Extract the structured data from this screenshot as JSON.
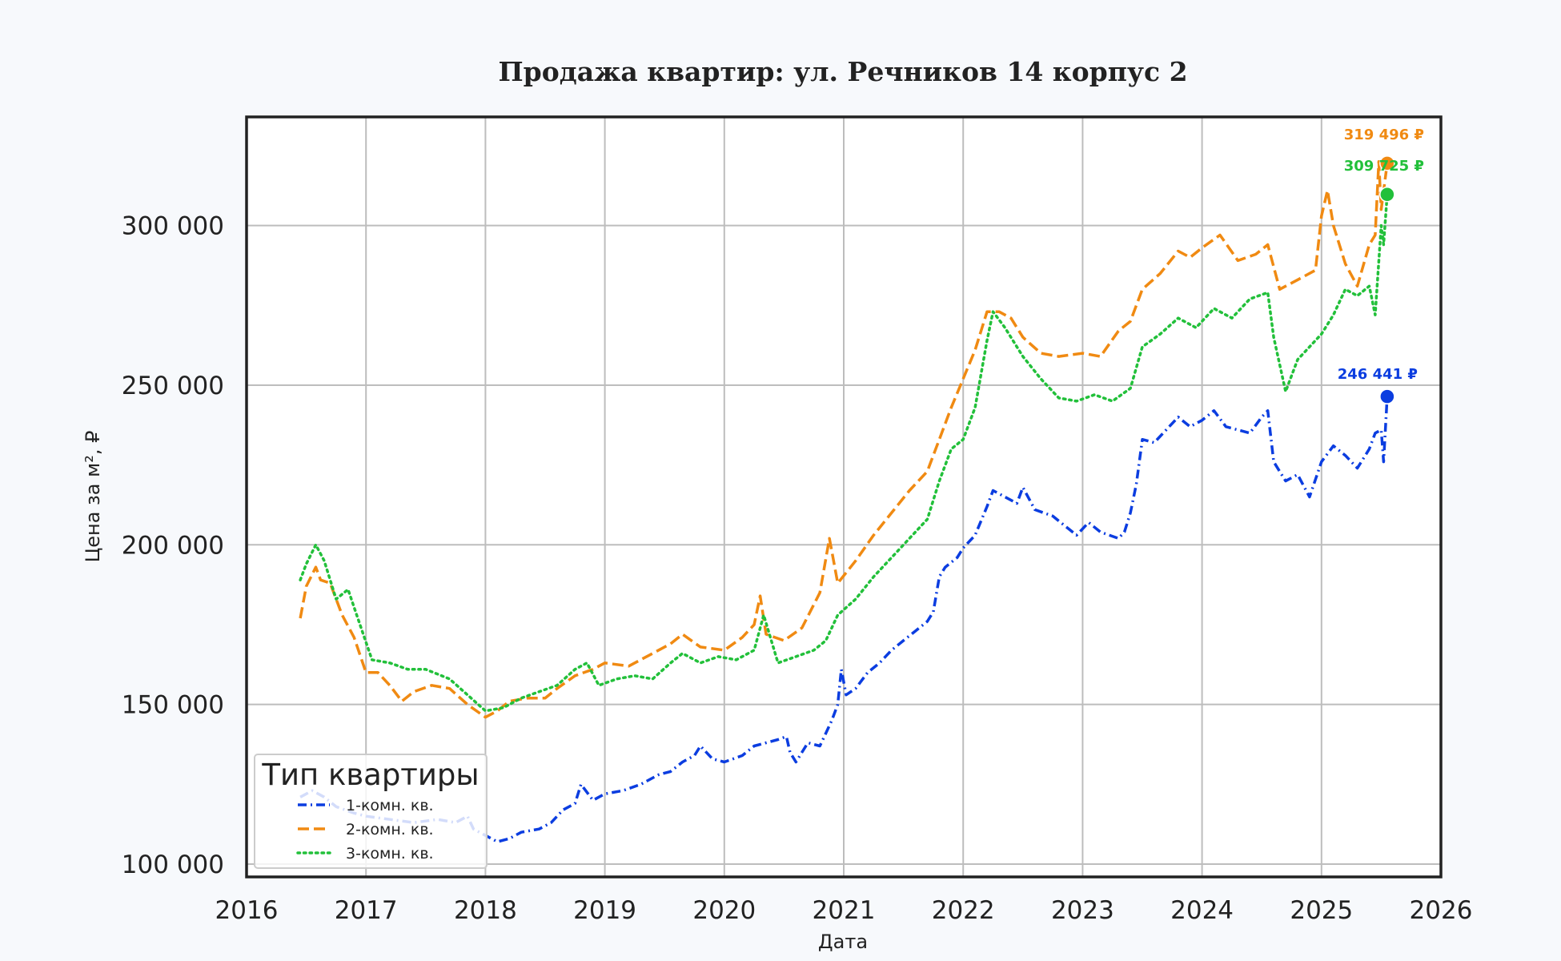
{
  "chart_data": {
    "type": "line",
    "title": "Продажа квартир: ул. Речников 14 корпус 2",
    "xlabel": "Дата",
    "ylabel": "Цена за м², ₽",
    "xlim": [
      2016,
      2026
    ],
    "ylim": [
      96000,
      334000
    ],
    "x_ticks": [
      2016,
      2017,
      2018,
      2019,
      2020,
      2021,
      2022,
      2023,
      2024,
      2025,
      2026
    ],
    "y_ticks": [
      100000,
      150000,
      200000,
      250000,
      300000
    ],
    "y_tick_labels": [
      "100 000",
      "150 000",
      "200 000",
      "250 000",
      "300 000"
    ],
    "grid": true,
    "legend": {
      "title": "Тип квартиры",
      "placement": "lower-left"
    },
    "series": [
      {
        "name": "1-комн. кв.",
        "color": "#0b3de0",
        "style": "dashdot",
        "end_label": "246 441 ₽",
        "points": [
          [
            2016.45,
            121000
          ],
          [
            2016.55,
            123000
          ],
          [
            2016.65,
            121000
          ],
          [
            2016.75,
            118000
          ],
          [
            2016.9,
            116000
          ],
          [
            2017.0,
            115000
          ],
          [
            2017.2,
            114000
          ],
          [
            2017.4,
            113000
          ],
          [
            2017.6,
            114000
          ],
          [
            2017.75,
            113000
          ],
          [
            2017.85,
            115000
          ],
          [
            2017.9,
            111000
          ],
          [
            2018.0,
            109000
          ],
          [
            2018.1,
            107000
          ],
          [
            2018.2,
            108000
          ],
          [
            2018.3,
            110000
          ],
          [
            2018.45,
            111000
          ],
          [
            2018.55,
            113000
          ],
          [
            2018.65,
            117000
          ],
          [
            2018.75,
            119000
          ],
          [
            2018.8,
            125000
          ],
          [
            2018.9,
            120000
          ],
          [
            2019.0,
            122000
          ],
          [
            2019.15,
            123000
          ],
          [
            2019.3,
            125000
          ],
          [
            2019.45,
            128000
          ],
          [
            2019.55,
            129000
          ],
          [
            2019.65,
            132000
          ],
          [
            2019.75,
            134000
          ],
          [
            2019.8,
            137000
          ],
          [
            2019.9,
            133000
          ],
          [
            2020.0,
            132000
          ],
          [
            2020.15,
            134000
          ],
          [
            2020.25,
            137000
          ],
          [
            2020.35,
            138000
          ],
          [
            2020.45,
            139000
          ],
          [
            2020.52,
            140000
          ],
          [
            2020.55,
            135000
          ],
          [
            2020.6,
            132000
          ],
          [
            2020.7,
            138000
          ],
          [
            2020.8,
            137000
          ],
          [
            2020.9,
            145000
          ],
          [
            2020.95,
            150000
          ],
          [
            2020.98,
            161000
          ],
          [
            2021.02,
            153000
          ],
          [
            2021.1,
            155000
          ],
          [
            2021.2,
            160000
          ],
          [
            2021.3,
            163000
          ],
          [
            2021.4,
            167000
          ],
          [
            2021.5,
            170000
          ],
          [
            2021.6,
            173000
          ],
          [
            2021.7,
            176000
          ],
          [
            2021.75,
            179000
          ],
          [
            2021.8,
            190000
          ],
          [
            2021.85,
            193000
          ],
          [
            2021.95,
            196000
          ],
          [
            2022.0,
            199000
          ],
          [
            2022.1,
            203000
          ],
          [
            2022.2,
            212000
          ],
          [
            2022.25,
            217000
          ],
          [
            2022.35,
            215000
          ],
          [
            2022.45,
            213000
          ],
          [
            2022.5,
            218000
          ],
          [
            2022.6,
            211000
          ],
          [
            2022.75,
            209000
          ],
          [
            2022.85,
            206000
          ],
          [
            2022.95,
            203000
          ],
          [
            2023.05,
            207000
          ],
          [
            2023.15,
            204000
          ],
          [
            2023.3,
            202000
          ],
          [
            2023.35,
            204000
          ],
          [
            2023.4,
            210000
          ],
          [
            2023.45,
            219000
          ],
          [
            2023.5,
            233000
          ],
          [
            2023.6,
            232000
          ],
          [
            2023.7,
            236000
          ],
          [
            2023.8,
            240000
          ],
          [
            2023.9,
            237000
          ],
          [
            2024.0,
            239000
          ],
          [
            2024.1,
            242000
          ],
          [
            2024.2,
            237000
          ],
          [
            2024.3,
            236000
          ],
          [
            2024.4,
            235000
          ],
          [
            2024.5,
            240000
          ],
          [
            2024.55,
            242000
          ],
          [
            2024.6,
            226000
          ],
          [
            2024.7,
            220000
          ],
          [
            2024.8,
            222000
          ],
          [
            2024.9,
            215000
          ],
          [
            2025.0,
            226000
          ],
          [
            2025.1,
            231000
          ],
          [
            2025.2,
            228000
          ],
          [
            2025.3,
            224000
          ],
          [
            2025.4,
            230000
          ],
          [
            2025.45,
            235000
          ],
          [
            2025.5,
            236000
          ],
          [
            2025.52,
            226000
          ],
          [
            2025.55,
            246441
          ]
        ]
      },
      {
        "name": "2-комн. кв.",
        "color": "#f08a12",
        "style": "dashed",
        "end_label": "319 496 ₽",
        "points": [
          [
            2016.45,
            177000
          ],
          [
            2016.5,
            187000
          ],
          [
            2016.58,
            193000
          ],
          [
            2016.62,
            189000
          ],
          [
            2016.7,
            188000
          ],
          [
            2016.8,
            178000
          ],
          [
            2016.9,
            171000
          ],
          [
            2017.0,
            160000
          ],
          [
            2017.1,
            160000
          ],
          [
            2017.2,
            156000
          ],
          [
            2017.3,
            151000
          ],
          [
            2017.4,
            154000
          ],
          [
            2017.55,
            156000
          ],
          [
            2017.7,
            155000
          ],
          [
            2017.85,
            150000
          ],
          [
            2018.0,
            146000
          ],
          [
            2018.1,
            148000
          ],
          [
            2018.2,
            151000
          ],
          [
            2018.35,
            152000
          ],
          [
            2018.5,
            152000
          ],
          [
            2018.6,
            155000
          ],
          [
            2018.75,
            159000
          ],
          [
            2018.9,
            161000
          ],
          [
            2019.0,
            163000
          ],
          [
            2019.2,
            162000
          ],
          [
            2019.4,
            166000
          ],
          [
            2019.55,
            169000
          ],
          [
            2019.65,
            172000
          ],
          [
            2019.8,
            168000
          ],
          [
            2020.0,
            167000
          ],
          [
            2020.15,
            171000
          ],
          [
            2020.25,
            175000
          ],
          [
            2020.3,
            184000
          ],
          [
            2020.35,
            172000
          ],
          [
            2020.5,
            170000
          ],
          [
            2020.65,
            174000
          ],
          [
            2020.8,
            185000
          ],
          [
            2020.88,
            202000
          ],
          [
            2020.95,
            188000
          ],
          [
            2021.1,
            195000
          ],
          [
            2021.25,
            203000
          ],
          [
            2021.4,
            210000
          ],
          [
            2021.55,
            217000
          ],
          [
            2021.7,
            223000
          ],
          [
            2021.8,
            233000
          ],
          [
            2021.9,
            243000
          ],
          [
            2022.0,
            252000
          ],
          [
            2022.1,
            261000
          ],
          [
            2022.2,
            273000
          ],
          [
            2022.3,
            273000
          ],
          [
            2022.4,
            271000
          ],
          [
            2022.5,
            265000
          ],
          [
            2022.65,
            260000
          ],
          [
            2022.8,
            259000
          ],
          [
            2023.0,
            260000
          ],
          [
            2023.15,
            259000
          ],
          [
            2023.3,
            267000
          ],
          [
            2023.4,
            270000
          ],
          [
            2023.5,
            280000
          ],
          [
            2023.65,
            285000
          ],
          [
            2023.8,
            292000
          ],
          [
            2023.9,
            290000
          ],
          [
            2024.0,
            293000
          ],
          [
            2024.15,
            297000
          ],
          [
            2024.3,
            289000
          ],
          [
            2024.45,
            291000
          ],
          [
            2024.55,
            294000
          ],
          [
            2024.65,
            280000
          ],
          [
            2024.8,
            283000
          ],
          [
            2024.95,
            286000
          ],
          [
            2025.0,
            303000
          ],
          [
            2025.05,
            311000
          ],
          [
            2025.1,
            300000
          ],
          [
            2025.2,
            288000
          ],
          [
            2025.3,
            281000
          ],
          [
            2025.4,
            294000
          ],
          [
            2025.45,
            297000
          ],
          [
            2025.48,
            320000
          ],
          [
            2025.5,
            305000
          ],
          [
            2025.55,
            319496
          ]
        ]
      },
      {
        "name": "3-комн. кв.",
        "color": "#22c03a",
        "style": "dotted",
        "end_label": "309 725 ₽",
        "points": [
          [
            2016.45,
            189000
          ],
          [
            2016.5,
            194000
          ],
          [
            2016.58,
            200000
          ],
          [
            2016.65,
            195000
          ],
          [
            2016.75,
            183000
          ],
          [
            2016.85,
            186000
          ],
          [
            2016.95,
            175000
          ],
          [
            2017.05,
            164000
          ],
          [
            2017.2,
            163000
          ],
          [
            2017.35,
            161000
          ],
          [
            2017.5,
            161000
          ],
          [
            2017.7,
            158000
          ],
          [
            2017.85,
            153000
          ],
          [
            2018.0,
            148000
          ],
          [
            2018.15,
            149000
          ],
          [
            2018.3,
            152000
          ],
          [
            2018.45,
            154000
          ],
          [
            2018.6,
            156000
          ],
          [
            2018.75,
            161000
          ],
          [
            2018.85,
            163000
          ],
          [
            2018.95,
            156000
          ],
          [
            2019.1,
            158000
          ],
          [
            2019.25,
            159000
          ],
          [
            2019.4,
            158000
          ],
          [
            2019.55,
            163000
          ],
          [
            2019.65,
            166000
          ],
          [
            2019.8,
            163000
          ],
          [
            2019.95,
            165000
          ],
          [
            2020.1,
            164000
          ],
          [
            2020.25,
            167000
          ],
          [
            2020.33,
            178000
          ],
          [
            2020.45,
            163000
          ],
          [
            2020.6,
            165000
          ],
          [
            2020.75,
            167000
          ],
          [
            2020.85,
            170000
          ],
          [
            2020.95,
            178000
          ],
          [
            2021.1,
            183000
          ],
          [
            2021.25,
            190000
          ],
          [
            2021.4,
            196000
          ],
          [
            2021.55,
            202000
          ],
          [
            2021.7,
            208000
          ],
          [
            2021.8,
            220000
          ],
          [
            2021.9,
            230000
          ],
          [
            2022.0,
            233000
          ],
          [
            2022.1,
            243000
          ],
          [
            2022.2,
            264000
          ],
          [
            2022.25,
            273000
          ],
          [
            2022.35,
            268000
          ],
          [
            2022.5,
            259000
          ],
          [
            2022.65,
            252000
          ],
          [
            2022.8,
            246000
          ],
          [
            2022.95,
            245000
          ],
          [
            2023.1,
            247000
          ],
          [
            2023.25,
            245000
          ],
          [
            2023.4,
            249000
          ],
          [
            2023.5,
            262000
          ],
          [
            2023.65,
            266000
          ],
          [
            2023.8,
            271000
          ],
          [
            2023.95,
            268000
          ],
          [
            2024.1,
            274000
          ],
          [
            2024.25,
            271000
          ],
          [
            2024.4,
            277000
          ],
          [
            2024.55,
            279000
          ],
          [
            2024.6,
            265000
          ],
          [
            2024.7,
            248000
          ],
          [
            2024.8,
            258000
          ],
          [
            2024.9,
            262000
          ],
          [
            2025.0,
            266000
          ],
          [
            2025.1,
            272000
          ],
          [
            2025.2,
            280000
          ],
          [
            2025.3,
            278000
          ],
          [
            2025.4,
            281000
          ],
          [
            2025.45,
            272000
          ],
          [
            2025.5,
            300000
          ],
          [
            2025.52,
            294000
          ],
          [
            2025.55,
            309725
          ]
        ]
      }
    ]
  }
}
